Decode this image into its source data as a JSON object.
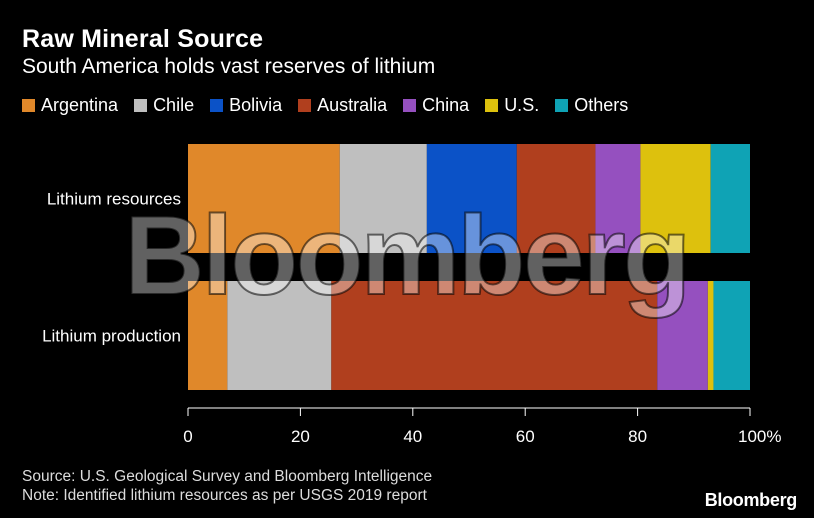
{
  "header": {
    "title": "Raw Mineral Source",
    "subtitle": "South America holds vast reserves of lithium"
  },
  "chart_data": {
    "type": "bar",
    "orientation": "horizontal",
    "stacked": true,
    "categories": [
      "Lithium resources",
      "Lithium production"
    ],
    "series": [
      {
        "name": "Argentina",
        "color": "#E0882A",
        "values": [
          27,
          7
        ]
      },
      {
        "name": "Chile",
        "color": "#BFBFBF",
        "values": [
          15.5,
          18.5
        ]
      },
      {
        "name": "Bolivia",
        "color": "#0B52C7",
        "values": [
          16,
          0
        ]
      },
      {
        "name": "Australia",
        "color": "#B03F1E",
        "values": [
          14,
          58
        ]
      },
      {
        "name": "China",
        "color": "#9550BF",
        "values": [
          8,
          9
        ]
      },
      {
        "name": "U.S.",
        "color": "#DDC10D",
        "values": [
          12.5,
          1
        ]
      },
      {
        "name": "Others",
        "color": "#0FA3B5",
        "values": [
          7,
          6.5
        ]
      }
    ],
    "xlim": [
      0,
      100
    ],
    "xticks": [
      0,
      20,
      40,
      60,
      80,
      100
    ],
    "xtick_labels": [
      "0",
      "20",
      "40",
      "60",
      "80",
      "100%"
    ],
    "xlabel": "",
    "ylabel": "",
    "legend": "top-left",
    "grid": false
  },
  "footer": {
    "source": "Source: U.S. Geological Survey and Bloomberg Intelligence",
    "note": "Note: Identified lithium resources as per USGS 2019 report",
    "logo": "Bloomberg"
  },
  "watermark": {
    "text": "Bloomberg"
  }
}
